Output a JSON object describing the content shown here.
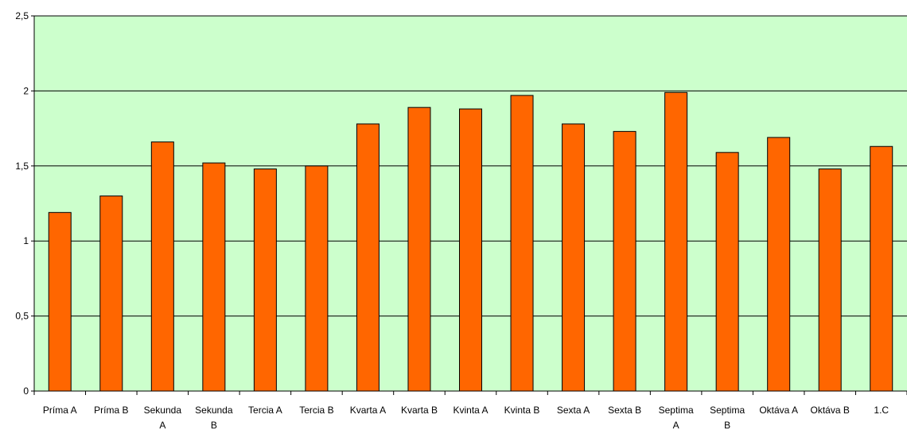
{
  "chart_data": {
    "type": "bar",
    "title": "",
    "xlabel": "",
    "ylabel": "",
    "categories": [
      [
        "Príma A"
      ],
      [
        "Príma B"
      ],
      [
        "Sekunda",
        "A"
      ],
      [
        "Sekunda",
        "B"
      ],
      [
        "Tercia A"
      ],
      [
        "Tercia B"
      ],
      [
        "Kvarta A"
      ],
      [
        "Kvarta B"
      ],
      [
        "Kvinta A"
      ],
      [
        "Kvinta B"
      ],
      [
        "Sexta A"
      ],
      [
        "Sexta B"
      ],
      [
        "Septima",
        "A"
      ],
      [
        "Septima",
        "B"
      ],
      [
        "Oktáva A"
      ],
      [
        "Oktáva B"
      ],
      [
        "1.C"
      ]
    ],
    "values": [
      1.19,
      1.3,
      1.66,
      1.52,
      1.48,
      1.5,
      1.78,
      1.89,
      1.88,
      1.97,
      1.78,
      1.73,
      1.99,
      1.59,
      1.69,
      1.48,
      1.63
    ],
    "ylim": [
      0,
      2.5
    ],
    "yticks": [
      0,
      0.5,
      1,
      1.5,
      2,
      2.5
    ],
    "ytick_labels": [
      "0",
      "0,5",
      "1",
      "1,5",
      "2",
      "2,5"
    ],
    "grid": true,
    "legend": "none",
    "colors": {
      "plot_background": "#ccffcc",
      "bar_fill": "#ff6600",
      "bar_stroke": "#000000",
      "gridline": "#000000"
    }
  }
}
